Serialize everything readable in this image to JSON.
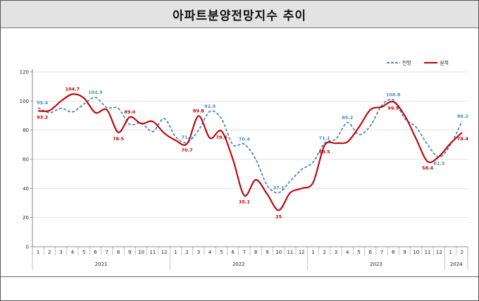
{
  "title": "아파트분양전망지수 추이",
  "chart_data": {
    "type": "line",
    "title": "아파트분양전망지수 추이",
    "ylim": [
      0,
      120
    ],
    "yticks": [
      0,
      20,
      40,
      60,
      80,
      100,
      120
    ],
    "grid": true,
    "legend_position": "top-right",
    "categories": [
      "1",
      "2",
      "3",
      "4",
      "5",
      "6",
      "7",
      "8",
      "9",
      "10",
      "11",
      "12",
      "1",
      "2",
      "3",
      "4",
      "5",
      "6",
      "7",
      "8",
      "9",
      "10",
      "11",
      "12",
      "1",
      "2",
      "3",
      "4",
      "5",
      "6",
      "7",
      "8",
      "9",
      "10",
      "11",
      "12",
      "1",
      "2"
    ],
    "years": [
      {
        "label": "2021",
        "months": 12
      },
      {
        "label": "2022",
        "months": 12
      },
      {
        "label": "2023",
        "months": 12
      },
      {
        "label": "2024",
        "months": 2
      }
    ],
    "series": [
      {
        "name": "전망",
        "color": "#4a86c5",
        "dashed": true,
        "values": [
          95.4,
          92,
          95,
          92.5,
          98,
          102.5,
          95.5,
          95,
          84,
          85,
          79,
          88,
          75.5,
          71.5,
          80,
          92.9,
          88,
          70,
          70.4,
          60,
          42,
          37.1,
          45,
          53,
          58,
          71.1,
          74,
          85.2,
          77,
          83,
          97,
          100.8,
          88,
          82,
          70,
          61.5,
          70,
          86.2
        ]
      },
      {
        "name": "실적",
        "color": "#c00000",
        "dashed": false,
        "values": [
          93.2,
          93.5,
          100,
          104.7,
          102,
          92,
          94,
          78.5,
          89,
          84.5,
          86,
          78,
          73,
          70.7,
          89.8,
          74.5,
          79.4,
          60,
          35.1,
          46,
          36,
          25,
          37,
          40,
          44,
          69.5,
          71,
          72,
          82,
          94,
          96,
          99.5,
          90,
          74,
          58.4,
          62,
          71,
          78.4
        ]
      }
    ],
    "data_labels": [
      {
        "series": 0,
        "index": 0,
        "text": "95.4"
      },
      {
        "series": 0,
        "index": 5,
        "text": "102.5"
      },
      {
        "series": 0,
        "index": 13,
        "text": "71.5"
      },
      {
        "series": 0,
        "index": 15,
        "text": "92.9"
      },
      {
        "series": 0,
        "index": 18,
        "text": "70.4"
      },
      {
        "series": 0,
        "index": 21,
        "text": "37.1"
      },
      {
        "series": 0,
        "index": 25,
        "text": "71.1"
      },
      {
        "series": 0,
        "index": 27,
        "text": "85.2"
      },
      {
        "series": 0,
        "index": 31,
        "text": "100.8"
      },
      {
        "series": 0,
        "index": 35,
        "text": "61.5"
      },
      {
        "series": 0,
        "index": 37,
        "text": "86.2"
      },
      {
        "series": 1,
        "index": 0,
        "text": "93.2"
      },
      {
        "series": 1,
        "index": 3,
        "text": "104.7"
      },
      {
        "series": 1,
        "index": 7,
        "text": "78.5"
      },
      {
        "series": 1,
        "index": 8,
        "text": "89.0"
      },
      {
        "series": 1,
        "index": 13,
        "text": "70.7"
      },
      {
        "series": 1,
        "index": 14,
        "text": "89.8"
      },
      {
        "series": 1,
        "index": 16,
        "text": "79.4"
      },
      {
        "series": 1,
        "index": 18,
        "text": "35.1"
      },
      {
        "series": 1,
        "index": 21,
        "text": "25"
      },
      {
        "series": 1,
        "index": 25,
        "text": "69.5"
      },
      {
        "series": 1,
        "index": 31,
        "text": "99.5"
      },
      {
        "series": 1,
        "index": 34,
        "text": "58.4"
      },
      {
        "series": 1,
        "index": 37,
        "text": "78.4"
      }
    ]
  }
}
